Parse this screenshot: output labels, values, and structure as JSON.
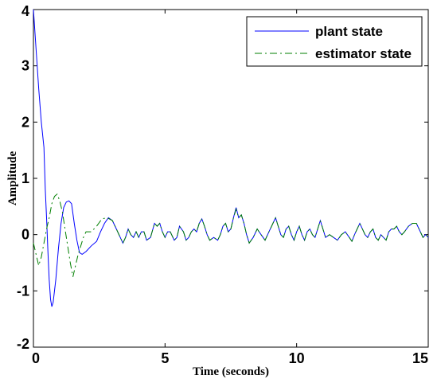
{
  "chart_data": {
    "type": "line",
    "title": "",
    "xlabel": "Time (seconds)",
    "ylabel": "Amplitude",
    "xlim": [
      0,
      15
    ],
    "ylim": [
      -2,
      4
    ],
    "x_ticks": [
      0,
      5,
      10,
      15
    ],
    "y_ticks": [
      -2,
      -1,
      0,
      1,
      2,
      3,
      4
    ],
    "x_tick_labels": [
      "0",
      "5",
      "10",
      "15"
    ],
    "y_tick_labels": [
      "-2",
      "-1",
      "0",
      "1",
      "2",
      "3",
      "4"
    ],
    "grid": false,
    "legend_position": "top-right",
    "series": [
      {
        "name": "plant state",
        "color": "#0000ff",
        "style": "solid",
        "points": [
          [
            0,
            4.0
          ],
          [
            0.1,
            3.3
          ],
          [
            0.2,
            2.6
          ],
          [
            0.3,
            2.0
          ],
          [
            0.4,
            1.55
          ],
          [
            0.45,
            0.8
          ],
          [
            0.5,
            0.3
          ],
          [
            0.55,
            -0.3
          ],
          [
            0.6,
            -0.8
          ],
          [
            0.65,
            -1.15
          ],
          [
            0.7,
            -1.28
          ],
          [
            0.75,
            -1.2
          ],
          [
            0.85,
            -0.8
          ],
          [
            0.95,
            -0.25
          ],
          [
            1.05,
            0.2
          ],
          [
            1.15,
            0.48
          ],
          [
            1.25,
            0.58
          ],
          [
            1.35,
            0.6
          ],
          [
            1.45,
            0.55
          ],
          [
            1.55,
            0.2
          ],
          [
            1.65,
            -0.1
          ],
          [
            1.75,
            -0.32
          ],
          [
            1.85,
            -0.35
          ],
          [
            2.0,
            -0.3
          ],
          [
            2.2,
            -0.2
          ],
          [
            2.4,
            -0.12
          ],
          [
            2.55,
            0.05
          ],
          [
            2.7,
            0.2
          ],
          [
            2.85,
            0.3
          ],
          [
            3.0,
            0.25
          ],
          [
            3.15,
            0.1
          ],
          [
            3.3,
            -0.05
          ],
          [
            3.4,
            -0.15
          ],
          [
            3.5,
            -0.05
          ],
          [
            3.6,
            0.1
          ],
          [
            3.7,
            0.0
          ],
          [
            3.8,
            -0.05
          ],
          [
            3.9,
            0.05
          ],
          [
            4.0,
            -0.05
          ],
          [
            4.1,
            0.05
          ],
          [
            4.2,
            0.05
          ],
          [
            4.3,
            -0.1
          ],
          [
            4.45,
            -0.05
          ],
          [
            4.6,
            0.2
          ],
          [
            4.7,
            0.15
          ],
          [
            4.8,
            0.2
          ],
          [
            4.9,
            0.05
          ],
          [
            5.0,
            -0.05
          ],
          [
            5.1,
            0.05
          ],
          [
            5.2,
            0.05
          ],
          [
            5.35,
            -0.1
          ],
          [
            5.45,
            -0.05
          ],
          [
            5.55,
            0.15
          ],
          [
            5.7,
            0.05
          ],
          [
            5.8,
            -0.1
          ],
          [
            5.9,
            -0.05
          ],
          [
            6.0,
            0.05
          ],
          [
            6.1,
            0.1
          ],
          [
            6.2,
            0.05
          ],
          [
            6.3,
            0.2
          ],
          [
            6.4,
            0.28
          ],
          [
            6.5,
            0.15
          ],
          [
            6.6,
            0.0
          ],
          [
            6.7,
            -0.1
          ],
          [
            6.85,
            -0.05
          ],
          [
            7.0,
            -0.1
          ],
          [
            7.1,
            0.0
          ],
          [
            7.2,
            0.15
          ],
          [
            7.3,
            0.2
          ],
          [
            7.4,
            0.05
          ],
          [
            7.5,
            0.1
          ],
          [
            7.6,
            0.3
          ],
          [
            7.7,
            0.48
          ],
          [
            7.8,
            0.3
          ],
          [
            7.9,
            0.35
          ],
          [
            8.0,
            0.2
          ],
          [
            8.1,
            0.0
          ],
          [
            8.2,
            -0.15
          ],
          [
            8.35,
            -0.05
          ],
          [
            8.5,
            0.1
          ],
          [
            8.65,
            0.0
          ],
          [
            8.8,
            -0.1
          ],
          [
            8.95,
            0.05
          ],
          [
            9.1,
            0.2
          ],
          [
            9.2,
            0.3
          ],
          [
            9.3,
            0.15
          ],
          [
            9.4,
            0.0
          ],
          [
            9.5,
            -0.05
          ],
          [
            9.6,
            0.1
          ],
          [
            9.7,
            0.15
          ],
          [
            9.8,
            0.0
          ],
          [
            9.9,
            -0.1
          ],
          [
            10.0,
            0.05
          ],
          [
            10.1,
            0.15
          ],
          [
            10.2,
            0.0
          ],
          [
            10.3,
            -0.1
          ],
          [
            10.4,
            0.05
          ],
          [
            10.5,
            0.1
          ],
          [
            10.6,
            0.0
          ],
          [
            10.7,
            -0.05
          ],
          [
            10.8,
            0.1
          ],
          [
            10.9,
            0.25
          ],
          [
            11.0,
            0.1
          ],
          [
            11.1,
            -0.05
          ],
          [
            11.25,
            0.0
          ],
          [
            11.4,
            -0.05
          ],
          [
            11.55,
            -0.1
          ],
          [
            11.7,
            0.0
          ],
          [
            11.85,
            0.05
          ],
          [
            12.0,
            -0.05
          ],
          [
            12.1,
            -0.12
          ],
          [
            12.2,
            0.0
          ],
          [
            12.3,
            0.1
          ],
          [
            12.4,
            0.2
          ],
          [
            12.5,
            0.1
          ],
          [
            12.6,
            0.0
          ],
          [
            12.7,
            -0.05
          ],
          [
            12.8,
            0.05
          ],
          [
            12.9,
            0.1
          ],
          [
            13.0,
            -0.05
          ],
          [
            13.1,
            -0.1
          ],
          [
            13.2,
            0.0
          ],
          [
            13.3,
            -0.05
          ],
          [
            13.4,
            -0.1
          ],
          [
            13.5,
            0.05
          ],
          [
            13.6,
            0.1
          ],
          [
            13.7,
            0.1
          ],
          [
            13.8,
            0.15
          ],
          [
            13.9,
            0.05
          ],
          [
            14.0,
            0.0
          ],
          [
            14.1,
            0.05
          ],
          [
            14.25,
            0.15
          ],
          [
            14.4,
            0.2
          ],
          [
            14.55,
            0.2
          ],
          [
            14.7,
            0.05
          ],
          [
            14.8,
            -0.05
          ],
          [
            14.9,
            0.0
          ],
          [
            15.0,
            -0.05
          ]
        ]
      },
      {
        "name": "estimator state",
        "color": "#007f00",
        "style": "dash-dot",
        "points": [
          [
            0,
            -0.15
          ],
          [
            0.1,
            -0.35
          ],
          [
            0.2,
            -0.55
          ],
          [
            0.3,
            -0.4
          ],
          [
            0.4,
            -0.15
          ],
          [
            0.5,
            0.1
          ],
          [
            0.6,
            0.3
          ],
          [
            0.7,
            0.55
          ],
          [
            0.8,
            0.68
          ],
          [
            0.9,
            0.72
          ],
          [
            1.0,
            0.6
          ],
          [
            1.1,
            0.4
          ],
          [
            1.2,
            0.1
          ],
          [
            1.3,
            -0.2
          ],
          [
            1.4,
            -0.5
          ],
          [
            1.5,
            -0.75
          ],
          [
            1.6,
            -0.55
          ],
          [
            1.7,
            -0.35
          ],
          [
            1.8,
            -0.2
          ],
          [
            1.9,
            -0.05
          ],
          [
            2.0,
            0.05
          ],
          [
            2.2,
            0.05
          ],
          [
            2.4,
            0.15
          ],
          [
            2.6,
            0.28
          ],
          [
            2.8,
            0.3
          ],
          [
            3.0,
            0.25
          ],
          [
            3.15,
            0.1
          ],
          [
            3.3,
            -0.05
          ],
          [
            3.4,
            -0.15
          ],
          [
            3.5,
            -0.05
          ],
          [
            3.6,
            0.1
          ],
          [
            3.7,
            0.0
          ],
          [
            3.8,
            -0.05
          ],
          [
            3.9,
            0.05
          ],
          [
            4.0,
            -0.05
          ],
          [
            4.1,
            0.05
          ],
          [
            4.2,
            0.05
          ],
          [
            4.3,
            -0.1
          ],
          [
            4.45,
            -0.05
          ],
          [
            4.6,
            0.2
          ],
          [
            4.7,
            0.15
          ],
          [
            4.8,
            0.2
          ],
          [
            4.9,
            0.05
          ],
          [
            5.0,
            -0.05
          ],
          [
            5.1,
            0.05
          ],
          [
            5.2,
            0.05
          ],
          [
            5.35,
            -0.1
          ],
          [
            5.45,
            -0.05
          ],
          [
            5.55,
            0.15
          ],
          [
            5.7,
            0.05
          ],
          [
            5.8,
            -0.1
          ],
          [
            5.9,
            -0.05
          ],
          [
            6.0,
            0.05
          ],
          [
            6.1,
            0.1
          ],
          [
            6.2,
            0.05
          ],
          [
            6.3,
            0.2
          ],
          [
            6.4,
            0.28
          ],
          [
            6.5,
            0.15
          ],
          [
            6.6,
            0.0
          ],
          [
            6.7,
            -0.1
          ],
          [
            6.85,
            -0.05
          ],
          [
            7.0,
            -0.1
          ],
          [
            7.1,
            0.0
          ],
          [
            7.2,
            0.15
          ],
          [
            7.3,
            0.2
          ],
          [
            7.4,
            0.05
          ],
          [
            7.5,
            0.1
          ],
          [
            7.6,
            0.3
          ],
          [
            7.7,
            0.45
          ],
          [
            7.8,
            0.3
          ],
          [
            7.9,
            0.35
          ],
          [
            8.0,
            0.2
          ],
          [
            8.1,
            0.0
          ],
          [
            8.2,
            -0.15
          ],
          [
            8.35,
            -0.05
          ],
          [
            8.5,
            0.1
          ],
          [
            8.65,
            0.0
          ],
          [
            8.8,
            -0.1
          ],
          [
            8.95,
            0.05
          ],
          [
            9.1,
            0.2
          ],
          [
            9.2,
            0.3
          ],
          [
            9.3,
            0.15
          ],
          [
            9.4,
            0.0
          ],
          [
            9.5,
            -0.05
          ],
          [
            9.6,
            0.1
          ],
          [
            9.7,
            0.15
          ],
          [
            9.8,
            0.0
          ],
          [
            9.9,
            -0.1
          ],
          [
            10.0,
            0.05
          ],
          [
            10.1,
            0.15
          ],
          [
            10.2,
            0.0
          ],
          [
            10.3,
            -0.1
          ],
          [
            10.4,
            0.05
          ],
          [
            10.5,
            0.1
          ],
          [
            10.6,
            0.0
          ],
          [
            10.7,
            -0.05
          ],
          [
            10.8,
            0.1
          ],
          [
            10.9,
            0.25
          ],
          [
            11.0,
            0.1
          ],
          [
            11.1,
            -0.05
          ],
          [
            11.25,
            0.0
          ],
          [
            11.4,
            -0.05
          ],
          [
            11.55,
            -0.1
          ],
          [
            11.7,
            0.0
          ],
          [
            11.85,
            0.05
          ],
          [
            12.0,
            -0.05
          ],
          [
            12.1,
            -0.12
          ],
          [
            12.2,
            0.0
          ],
          [
            12.3,
            0.1
          ],
          [
            12.4,
            0.2
          ],
          [
            12.5,
            0.1
          ],
          [
            12.6,
            0.0
          ],
          [
            12.7,
            -0.05
          ],
          [
            12.8,
            0.05
          ],
          [
            12.9,
            0.1
          ],
          [
            13.0,
            -0.05
          ],
          [
            13.1,
            -0.1
          ],
          [
            13.2,
            0.0
          ],
          [
            13.3,
            -0.05
          ],
          [
            13.4,
            -0.1
          ],
          [
            13.5,
            0.05
          ],
          [
            13.6,
            0.1
          ],
          [
            13.7,
            0.1
          ],
          [
            13.8,
            0.15
          ],
          [
            13.9,
            0.05
          ],
          [
            14.0,
            0.0
          ],
          [
            14.1,
            0.05
          ],
          [
            14.25,
            0.15
          ],
          [
            14.4,
            0.2
          ],
          [
            14.55,
            0.2
          ],
          [
            14.7,
            0.05
          ],
          [
            14.8,
            -0.05
          ],
          [
            14.9,
            0.0
          ],
          [
            15.0,
            -0.05
          ]
        ]
      }
    ]
  }
}
